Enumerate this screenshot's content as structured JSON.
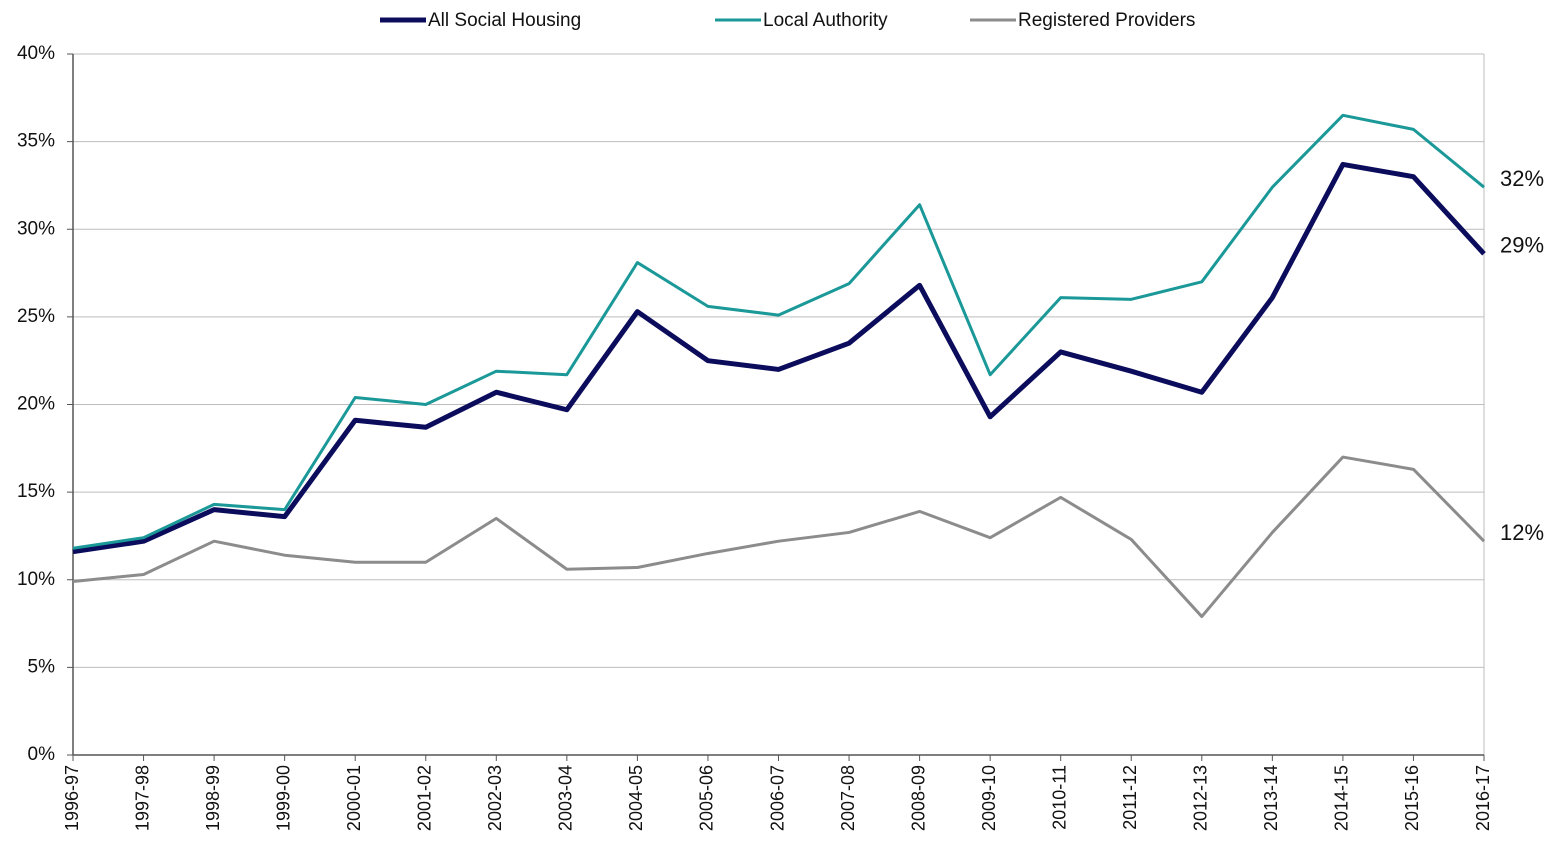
{
  "chart_data": {
    "type": "line",
    "categories": [
      "1996-97",
      "1997-98",
      "1998-99",
      "1999-00",
      "2000-01",
      "2001-02",
      "2002-03",
      "2003-04",
      "2004-05",
      "2005-06",
      "2006-07",
      "2007-08",
      "2008-09",
      "2009-10",
      "2010-11",
      "2011-12",
      "2012-13",
      "2013-14",
      "2014-15",
      "2015-16",
      "2016-17"
    ],
    "series": [
      {
        "name": "All Social Housing",
        "color": "#0c0c5c",
        "values": [
          11.6,
          12.2,
          14.0,
          13.6,
          19.1,
          18.7,
          20.7,
          19.7,
          25.3,
          22.5,
          22.0,
          23.5,
          26.8,
          19.3,
          23.0,
          21.9,
          20.7,
          26.1,
          33.7,
          33.0,
          28.6
        ],
        "value_labels": [
          null,
          null,
          null,
          null,
          null,
          null,
          null,
          null,
          null,
          null,
          null,
          null,
          null,
          null,
          null,
          null,
          null,
          null,
          null,
          null,
          "29%"
        ]
      },
      {
        "name": "Local Authority",
        "color": "#1b9898",
        "values": [
          11.8,
          12.4,
          14.3,
          14.0,
          20.4,
          20.0,
          21.9,
          21.7,
          28.1,
          25.6,
          25.1,
          26.9,
          31.4,
          21.7,
          26.1,
          26.0,
          27.0,
          32.4,
          36.5,
          35.7,
          32.4
        ],
        "value_labels": [
          null,
          null,
          null,
          null,
          null,
          null,
          null,
          null,
          null,
          null,
          null,
          null,
          null,
          null,
          null,
          null,
          null,
          null,
          null,
          null,
          "32%"
        ]
      },
      {
        "name": "Registered Providers",
        "color": "#8c8c8c",
        "values": [
          9.9,
          10.3,
          12.2,
          11.4,
          11.0,
          11.0,
          13.5,
          10.6,
          10.7,
          11.5,
          12.2,
          12.7,
          13.9,
          12.4,
          14.7,
          12.3,
          7.9,
          12.7,
          17.0,
          16.3,
          12.2
        ],
        "value_labels": [
          null,
          null,
          null,
          null,
          null,
          null,
          null,
          null,
          null,
          null,
          null,
          null,
          null,
          null,
          null,
          null,
          null,
          null,
          null,
          null,
          "12%"
        ]
      }
    ],
    "ylim": [
      0,
      40
    ],
    "yticks": [
      {
        "value": 0,
        "label": "0%"
      },
      {
        "value": 5,
        "label": "5%"
      },
      {
        "value": 10,
        "label": "10%"
      },
      {
        "value": 15,
        "label": "15%"
      },
      {
        "value": 20,
        "label": "20%"
      },
      {
        "value": 25,
        "label": "25%"
      },
      {
        "value": 30,
        "label": "30%"
      },
      {
        "value": 35,
        "label": "35%"
      },
      {
        "value": 40,
        "label": "40%"
      }
    ],
    "grid": true,
    "legend": "top"
  }
}
